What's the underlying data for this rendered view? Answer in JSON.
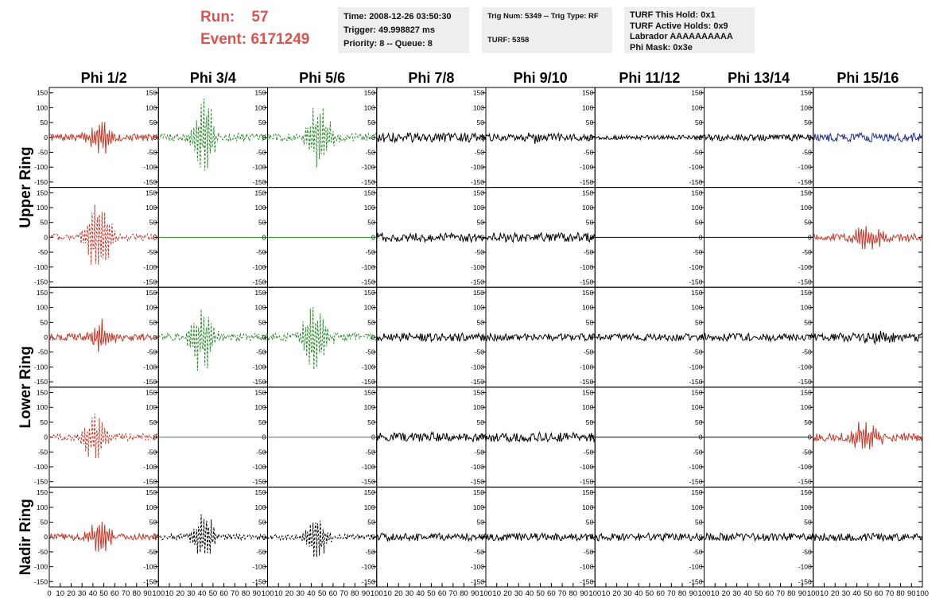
{
  "header": {
    "run_label": "Run:",
    "run_value": "57",
    "event_label": "Event:",
    "event_value": "6171249",
    "time_lines": [
      "Time: 2008-12-26 03:50:30",
      "Trigger: 49.998827 ms",
      "Priority: 8 -- Queue: 8"
    ],
    "trig_lines": [
      "Trig Num: 5349 -- Trig Type: RF",
      "",
      "TURF: 5358"
    ],
    "turf_lines": [
      "TURF This Hold: 0x1",
      "TURF Active Holds: 0x9",
      "Labrador AAAAAAAAAA",
      "Phi Mask: 0x3e"
    ]
  },
  "colors": {
    "header_red": "#d9534f",
    "red": "#c0392b",
    "green": "#2e8b2e",
    "black": "#000000",
    "blue": "#1f2f8f"
  },
  "chart_data": {
    "type": "line",
    "columns": [
      "Phi 1/2",
      "Phi 3/4",
      "Phi 5/6",
      "Phi 7/8",
      "Phi 9/10",
      "Phi 11/12",
      "Phi 13/14",
      "Phi 15/16"
    ],
    "rows": [
      "Upper Ring",
      "Lower Ring",
      "Nadir Ring"
    ],
    "subrows_per_ring": {
      "Upper Ring": 2,
      "Lower Ring": 2,
      "Nadir Ring": 1
    },
    "xlim": [
      0,
      100
    ],
    "ylim": [
      -160,
      160
    ],
    "yticks": [
      -150,
      -100,
      -50,
      0,
      50,
      100,
      150
    ],
    "xticks": [
      0,
      10,
      20,
      30,
      40,
      50,
      60,
      70,
      80,
      90,
      100
    ],
    "panels": [
      [
        {
          "color": "red",
          "style": "solid",
          "amp": 55,
          "center": 47,
          "width": 8,
          "noise": 12
        },
        {
          "color": "green",
          "style": "dashed",
          "amp": 150,
          "center": 42,
          "width": 7,
          "noise": 14
        },
        {
          "color": "green",
          "style": "dashed",
          "amp": 125,
          "center": 47,
          "width": 8,
          "noise": 14
        },
        {
          "color": "black",
          "style": "solid",
          "amp": 0,
          "center": 50,
          "width": 8,
          "noise": 16
        },
        {
          "color": "black",
          "style": "solid",
          "amp": 20,
          "center": 50,
          "width": 8,
          "noise": 12
        },
        {
          "color": "black",
          "style": "solid",
          "amp": 0,
          "center": 50,
          "width": 8,
          "noise": 7
        },
        {
          "color": "black",
          "style": "solid",
          "amp": 0,
          "center": 50,
          "width": 8,
          "noise": 11
        },
        {
          "color": "blue",
          "style": "solid",
          "amp": 0,
          "center": 50,
          "width": 8,
          "noise": 15
        }
      ],
      [
        {
          "color": "red",
          "style": "dashed",
          "amp": 150,
          "center": 45,
          "width": 8,
          "noise": 12
        },
        {
          "color": "green",
          "style": "solid",
          "amp": 0,
          "center": 50,
          "width": 8,
          "noise": 0
        },
        {
          "color": "green",
          "style": "solid",
          "amp": 0,
          "center": 50,
          "width": 8,
          "noise": 0
        },
        {
          "color": "black",
          "style": "solid",
          "amp": 0,
          "center": 50,
          "width": 8,
          "noise": 16
        },
        {
          "color": "black",
          "style": "solid",
          "amp": 0,
          "center": 50,
          "width": 8,
          "noise": 16
        },
        {
          "color": "black",
          "style": "solid",
          "amp": 0,
          "center": 50,
          "width": 8,
          "noise": 0
        },
        {
          "color": "black",
          "style": "solid",
          "amp": 0,
          "center": 50,
          "width": 8,
          "noise": 0
        },
        {
          "color": "red",
          "style": "solid",
          "amp": 45,
          "center": 50,
          "width": 10,
          "noise": 14
        }
      ],
      [
        {
          "color": "red",
          "style": "solid",
          "amp": 55,
          "center": 47,
          "width": 8,
          "noise": 12
        },
        {
          "color": "green",
          "style": "dashed",
          "amp": 130,
          "center": 40,
          "width": 7,
          "noise": 14
        },
        {
          "color": "green",
          "style": "dashed",
          "amp": 120,
          "center": 43,
          "width": 8,
          "noise": 14
        },
        {
          "color": "black",
          "style": "solid",
          "amp": 0,
          "center": 50,
          "width": 8,
          "noise": 14
        },
        {
          "color": "black",
          "style": "solid",
          "amp": 0,
          "center": 50,
          "width": 8,
          "noise": 12
        },
        {
          "color": "black",
          "style": "solid",
          "amp": 0,
          "center": 50,
          "width": 8,
          "noise": 12
        },
        {
          "color": "black",
          "style": "solid",
          "amp": 0,
          "center": 50,
          "width": 8,
          "noise": 14
        },
        {
          "color": "black",
          "style": "solid",
          "amp": 25,
          "center": 60,
          "width": 10,
          "noise": 14
        }
      ],
      [
        {
          "color": "red",
          "style": "dashed",
          "amp": 85,
          "center": 42,
          "width": 8,
          "noise": 12
        },
        {
          "color": "green",
          "style": "solid",
          "amp": 0,
          "center": 50,
          "width": 8,
          "noise": 0
        },
        {
          "color": "green",
          "style": "solid",
          "amp": 0,
          "center": 50,
          "width": 8,
          "noise": 0
        },
        {
          "color": "black",
          "style": "solid",
          "amp": 0,
          "center": 50,
          "width": 8,
          "noise": 16
        },
        {
          "color": "black",
          "style": "solid",
          "amp": 0,
          "center": 50,
          "width": 8,
          "noise": 16
        },
        {
          "color": "black",
          "style": "solid",
          "amp": 0,
          "center": 50,
          "width": 8,
          "noise": 0
        },
        {
          "color": "black",
          "style": "solid",
          "amp": 0,
          "center": 50,
          "width": 8,
          "noise": 0
        },
        {
          "color": "red",
          "style": "solid",
          "amp": 50,
          "center": 48,
          "width": 10,
          "noise": 14
        }
      ],
      [
        {
          "color": "red",
          "style": "solid",
          "amp": 60,
          "center": 47,
          "width": 8,
          "noise": 12
        },
        {
          "color": "black",
          "style": "dashed",
          "amp": 95,
          "center": 42,
          "width": 7,
          "noise": 10
        },
        {
          "color": "black",
          "style": "dashed",
          "amp": 100,
          "center": 45,
          "width": 7,
          "noise": 10
        },
        {
          "color": "black",
          "style": "solid",
          "amp": 0,
          "center": 50,
          "width": 8,
          "noise": 13
        },
        {
          "color": "black",
          "style": "solid",
          "amp": 0,
          "center": 50,
          "width": 8,
          "noise": 13
        },
        {
          "color": "black",
          "style": "solid",
          "amp": 0,
          "center": 50,
          "width": 8,
          "noise": 13
        },
        {
          "color": "black",
          "style": "solid",
          "amp": 0,
          "center": 50,
          "width": 8,
          "noise": 13
        },
        {
          "color": "black",
          "style": "solid",
          "amp": 0,
          "center": 50,
          "width": 8,
          "noise": 13
        }
      ]
    ]
  }
}
